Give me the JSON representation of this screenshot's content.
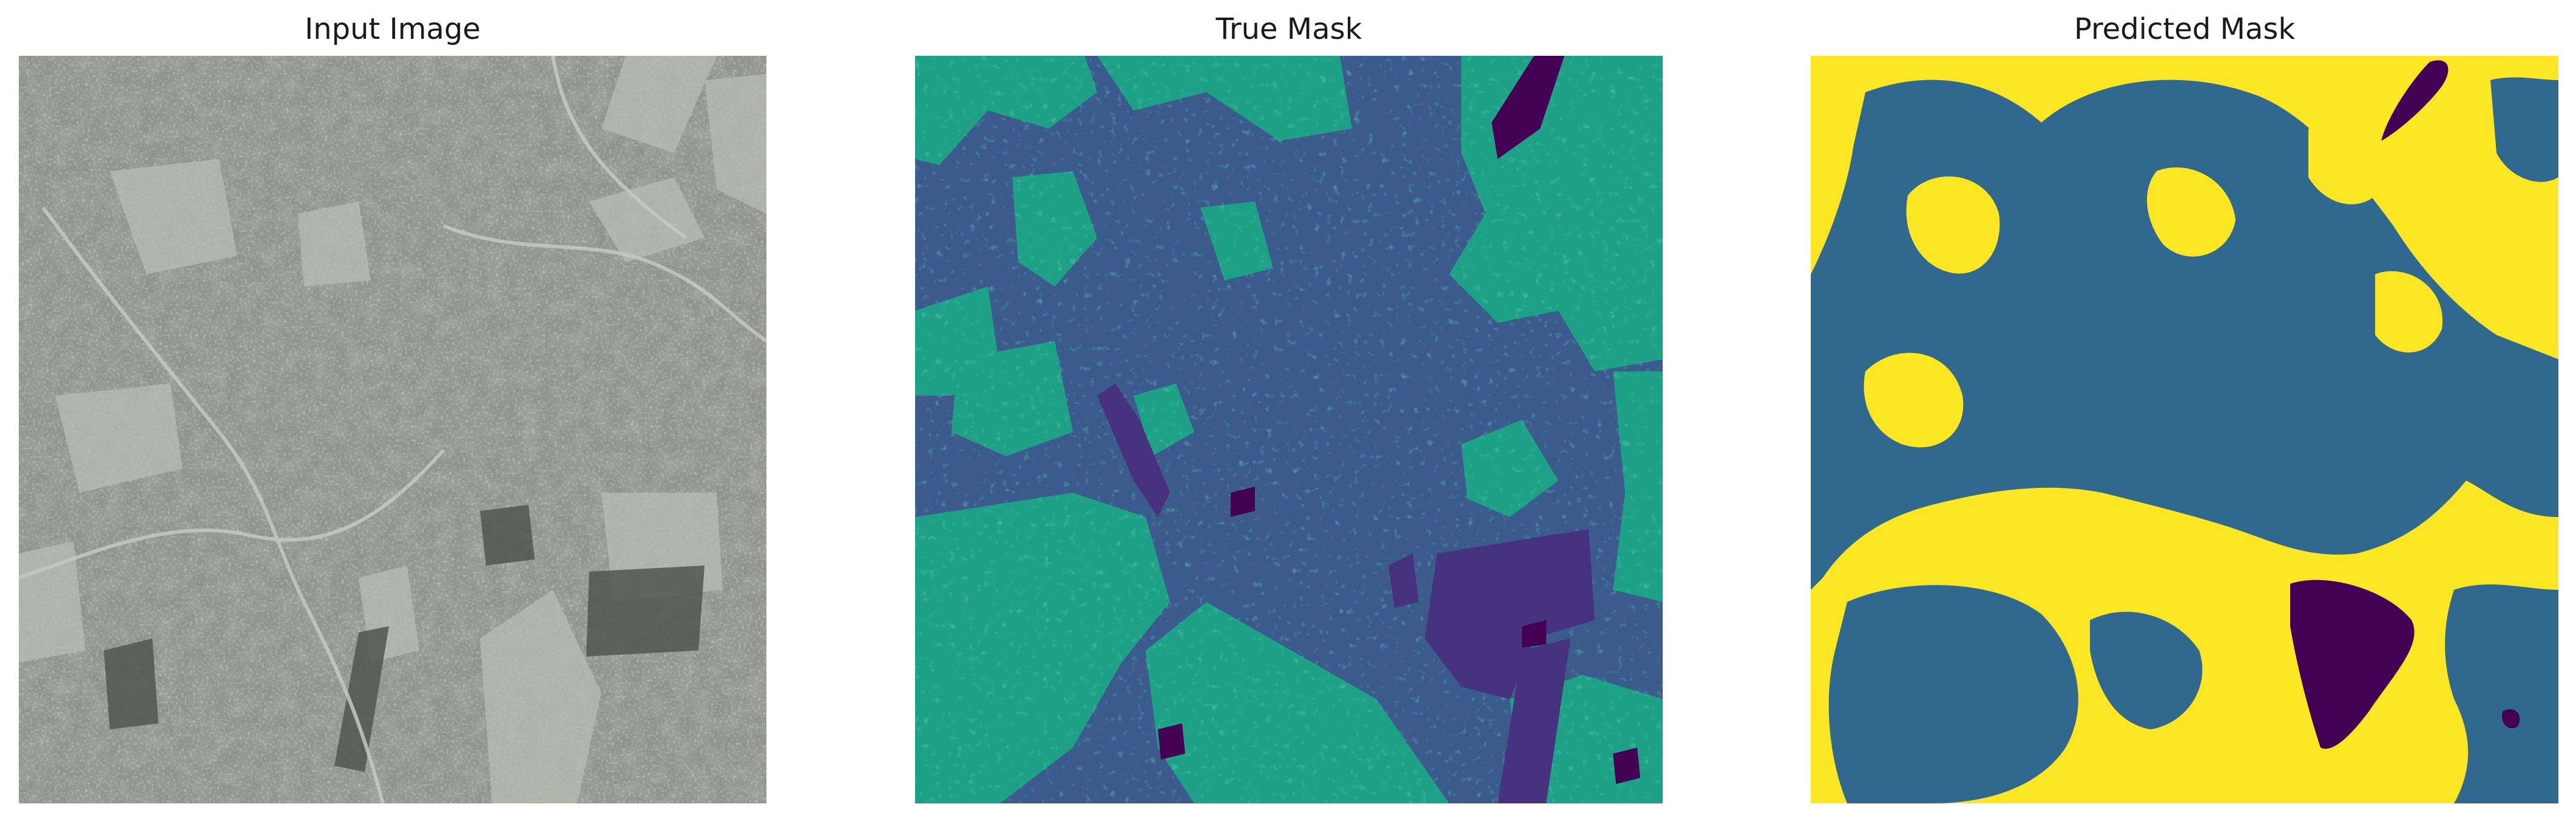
{
  "panels": [
    {
      "title": "Input Image"
    },
    {
      "title": "True Mask"
    },
    {
      "title": "Predicted Mask"
    }
  ],
  "colors": {
    "satellite_base": "#8f948c",
    "satellite_dark": "#4f574d",
    "satellite_light": "#b9bcb3",
    "mask_purple_dark": "#440154",
    "mask_purple": "#46327e",
    "mask_blue": "#365c8d",
    "mask_teal": "#277f8e",
    "mask_green": "#1fa187",
    "mask_yellow": "#fde725"
  }
}
